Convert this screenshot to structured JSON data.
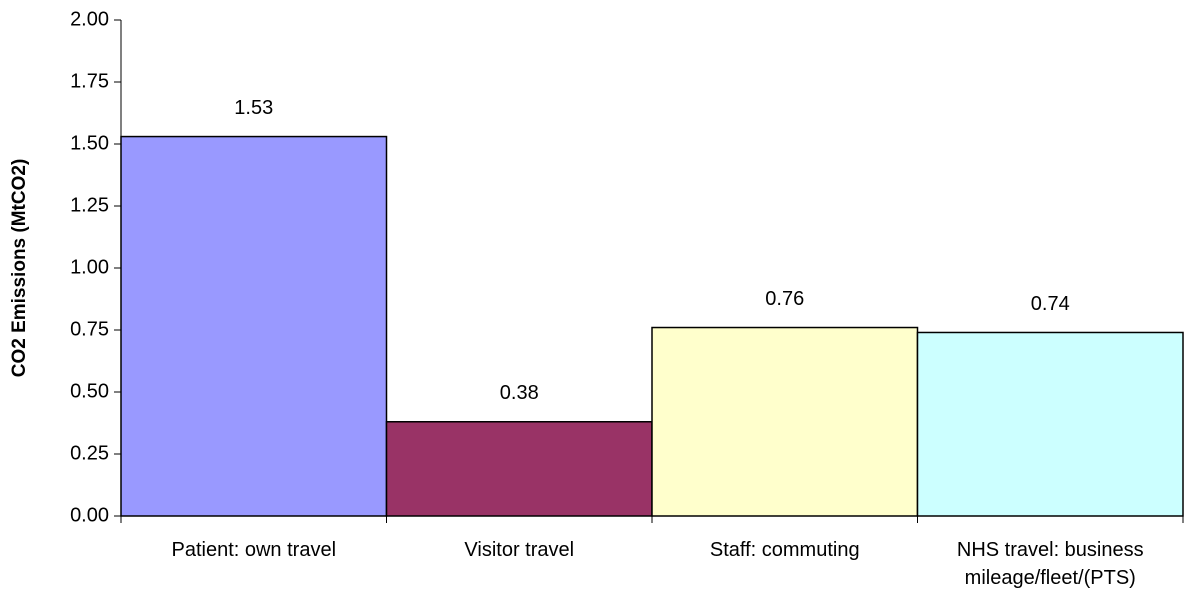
{
  "chart_data": {
    "type": "bar",
    "y_label": "CO2 Emissions (MtCO2)",
    "categories": [
      "Patient: own travel",
      "Visitor travel",
      "Staff: commuting",
      "NHS travel: business mileage/fleet/(PTS)"
    ],
    "values": [
      1.53,
      0.38,
      0.76,
      0.74
    ],
    "colors": [
      "#9999ff",
      "#993366",
      "#ffffcc",
      "#ccffff"
    ],
    "ylim": [
      0,
      2
    ],
    "yticks": [
      {
        "value": 0,
        "label": "0.00"
      },
      0.25,
      {
        "value": 0.5,
        "label": "0.50"
      },
      0.75,
      {
        "value": 1,
        "label": "1.00"
      },
      1.25,
      {
        "value": 1.5,
        "label": "1.50"
      },
      1.75,
      {
        "value": 2,
        "label": "2.00"
      }
    ]
  }
}
